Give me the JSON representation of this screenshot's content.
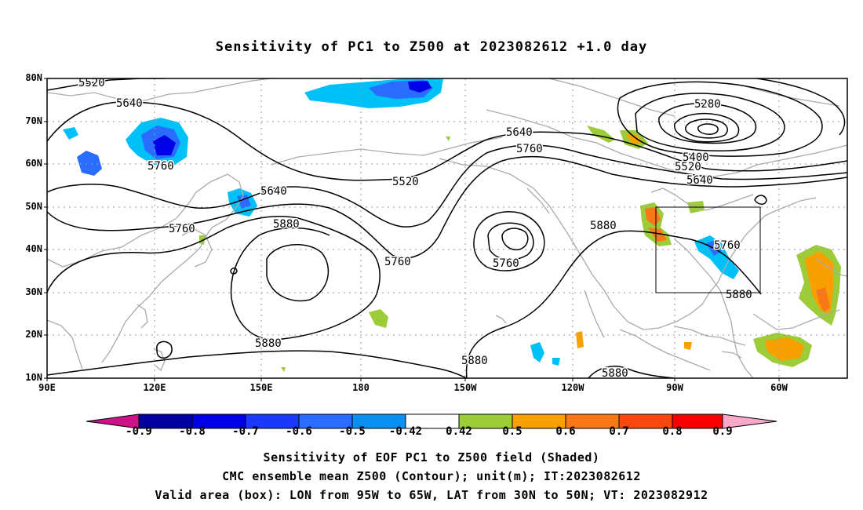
{
  "title": "Sensitivity of PC1 to Z500 at 2023082612 +1.0 day",
  "lat_labels": [
    "80N",
    "70N",
    "60N",
    "50N",
    "40N",
    "30N",
    "20N",
    "10N"
  ],
  "lon_labels": [
    "90E",
    "120E",
    "150E",
    "180",
    "150W",
    "120W",
    "90W",
    "60W"
  ],
  "contour_labels": [
    "5520",
    "5640",
    "5760",
    "5640",
    "5760",
    "5880",
    "5880",
    "5520",
    "5640",
    "5760",
    "5760",
    "5760",
    "5280",
    "5400",
    "5520",
    "5640",
    "5880",
    "5760",
    "5880",
    "5880",
    "5880"
  ],
  "colorbar": {
    "ticks": [
      "-0.9",
      "-0.8",
      "-0.7",
      "-0.6",
      "-0.5",
      "-0.42",
      "0.42",
      "0.5",
      "0.6",
      "0.7",
      "0.8",
      "0.9"
    ],
    "colors": [
      "#0000a0",
      "#0000e6",
      "#1a38ff",
      "#2a6cff",
      "#0a90f0",
      "#00c0f8",
      "#ffffff",
      "#9ccc38",
      "#f8a000",
      "#f87818",
      "#f84810",
      "#f80000"
    ],
    "end_low": "#cc1488",
    "end_high": "#f8a8c8"
  },
  "captions": [
    "Sensitivity of EOF PC1 to Z500 field (Shaded)",
    "CMC ensemble mean Z500 (Contour); unit(m); IT:2023082612",
    "Valid area (box): LON from 95W to 65W, LAT from 30N to 50N; VT: 2023082912"
  ]
}
